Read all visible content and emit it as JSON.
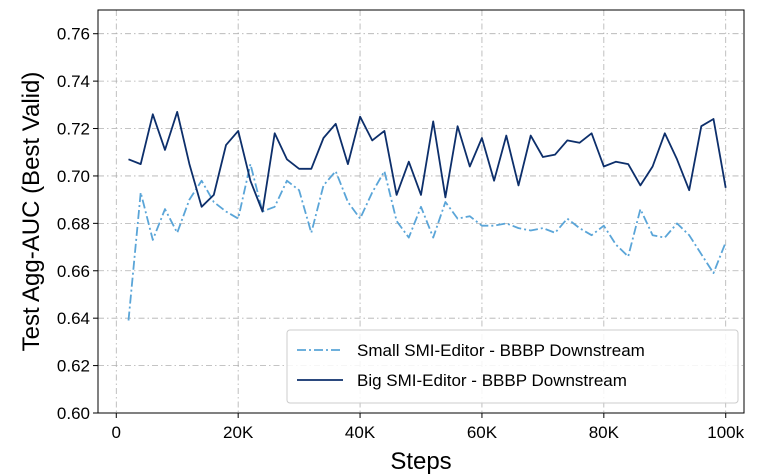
{
  "chart_data": {
    "type": "line",
    "xlabel": "Steps",
    "ylabel": "Test Agg-AUC (Best Valid)",
    "xlim": [
      -3000,
      103000
    ],
    "ylim": [
      0.6,
      0.77
    ],
    "xticks": [
      0,
      20000,
      40000,
      60000,
      80000,
      100000
    ],
    "xtick_labels": [
      "0",
      "20K",
      "40K",
      "60K",
      "80K",
      "100k"
    ],
    "yticks": [
      0.6,
      0.62,
      0.64,
      0.66,
      0.68,
      0.7,
      0.72,
      0.74,
      0.76
    ],
    "ytick_labels": [
      "0.60",
      "0.62",
      "0.64",
      "0.66",
      "0.68",
      "0.70",
      "0.72",
      "0.74",
      "0.76"
    ],
    "grid": true,
    "legend_position": "bottom-right",
    "series": [
      {
        "name": "Small SMI-Editor - BBBP Downstream",
        "color": "#5aa5d8",
        "linestyle": "dashdot",
        "x": [
          2000,
          4000,
          6000,
          8000,
          10000,
          12000,
          14000,
          16000,
          18000,
          20000,
          22000,
          24000,
          26000,
          28000,
          30000,
          32000,
          34000,
          36000,
          38000,
          40000,
          42000,
          44000,
          46000,
          48000,
          50000,
          52000,
          54000,
          56000,
          58000,
          60000,
          62000,
          64000,
          66000,
          68000,
          70000,
          72000,
          74000,
          76000,
          78000,
          80000,
          82000,
          84000,
          86000,
          88000,
          90000,
          92000,
          94000,
          96000,
          98000,
          100000
        ],
        "values": [
          0.639,
          0.693,
          0.673,
          0.686,
          0.676,
          0.69,
          0.698,
          0.689,
          0.685,
          0.682,
          0.705,
          0.685,
          0.687,
          0.698,
          0.694,
          0.676,
          0.696,
          0.702,
          0.689,
          0.682,
          0.693,
          0.702,
          0.681,
          0.674,
          0.687,
          0.674,
          0.689,
          0.682,
          0.683,
          0.679,
          0.679,
          0.68,
          0.678,
          0.677,
          0.678,
          0.676,
          0.682,
          0.678,
          0.675,
          0.679,
          0.671,
          0.666,
          0.686,
          0.675,
          0.674,
          0.68,
          0.675,
          0.667,
          0.659,
          0.672
        ]
      },
      {
        "name": "Big SMI-Editor - BBBP Downstream",
        "color": "#0d2f6b",
        "linestyle": "solid",
        "x": [
          2000,
          4000,
          6000,
          8000,
          10000,
          12000,
          14000,
          16000,
          18000,
          20000,
          22000,
          24000,
          26000,
          28000,
          30000,
          32000,
          34000,
          36000,
          38000,
          40000,
          42000,
          44000,
          46000,
          48000,
          50000,
          52000,
          54000,
          56000,
          58000,
          60000,
          62000,
          64000,
          66000,
          68000,
          70000,
          72000,
          74000,
          76000,
          78000,
          80000,
          82000,
          84000,
          86000,
          88000,
          90000,
          92000,
          94000,
          96000,
          98000,
          100000
        ],
        "values": [
          0.707,
          0.705,
          0.726,
          0.711,
          0.727,
          0.705,
          0.687,
          0.692,
          0.713,
          0.719,
          0.698,
          0.685,
          0.718,
          0.707,
          0.703,
          0.703,
          0.716,
          0.722,
          0.705,
          0.725,
          0.715,
          0.719,
          0.692,
          0.706,
          0.692,
          0.723,
          0.691,
          0.721,
          0.704,
          0.716,
          0.698,
          0.717,
          0.696,
          0.717,
          0.708,
          0.709,
          0.715,
          0.714,
          0.718,
          0.704,
          0.706,
          0.705,
          0.696,
          0.704,
          0.718,
          0.707,
          0.694,
          0.721,
          0.724,
          0.695
        ]
      }
    ]
  }
}
